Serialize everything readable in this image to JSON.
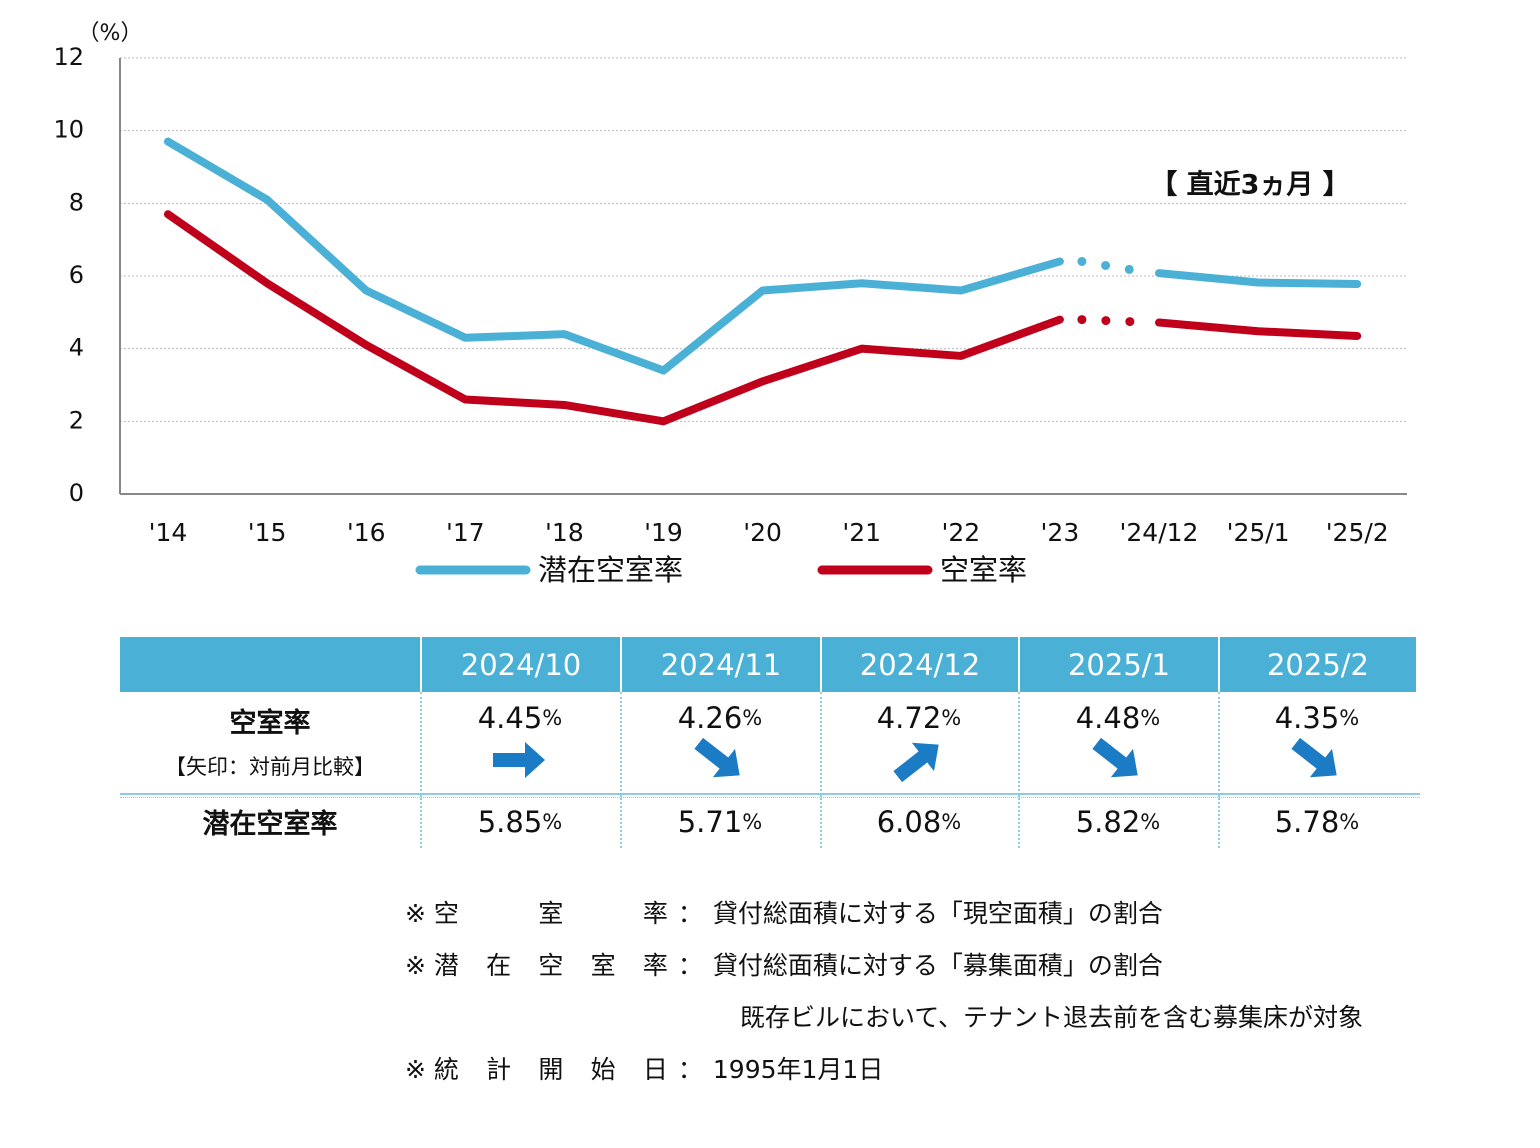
{
  "chart_data": {
    "type": "line",
    "y_unit_label": "（%）",
    "annotation": "【 直近3ヵ月 】",
    "categories": [
      "'14",
      "'15",
      "'16",
      "'17",
      "'18",
      "'19",
      "'20",
      "'21",
      "'22",
      "'23",
      "'24/12",
      "'25/1",
      "'25/2"
    ],
    "series": [
      {
        "name": "潜在空室率",
        "color": "#4bb0d6",
        "values": [
          9.7,
          8.1,
          5.6,
          4.3,
          4.4,
          3.4,
          5.6,
          5.8,
          5.6,
          6.4,
          6.08,
          5.82,
          5.78
        ]
      },
      {
        "name": "空室率",
        "color": "#c0001b",
        "values": [
          7.7,
          5.8,
          4.1,
          2.6,
          2.45,
          2.0,
          3.1,
          4.0,
          3.8,
          4.8,
          4.72,
          4.48,
          4.35
        ]
      }
    ],
    "dotted_segment": [
      9,
      10
    ],
    "ylim": [
      0,
      12
    ],
    "yticks": [
      0,
      2,
      4,
      6,
      8,
      10,
      12
    ],
    "grid": true
  },
  "table": {
    "columns": [
      "2024/10",
      "2024/11",
      "2024/12",
      "2025/1",
      "2025/2"
    ],
    "unit": "%",
    "rows": [
      {
        "label": "空室率",
        "sublabel": "【矢印：対前月比較】",
        "values": [
          4.45,
          4.26,
          4.72,
          4.48,
          4.35
        ],
        "arrows": [
          "flat",
          "down",
          "up",
          "down",
          "down"
        ]
      },
      {
        "label": "潜在空室率",
        "values": [
          5.85,
          5.71,
          6.08,
          5.82,
          5.78
        ]
      }
    ]
  },
  "notes": {
    "mark": "※",
    "colon": "：",
    "rows": [
      {
        "label": "空室率",
        "lines": [
          "貸付総面積に対する「現空面積」の割合"
        ]
      },
      {
        "label": "潜在空室率",
        "lines": [
          "貸付総面積に対する「募集面積」の割合",
          "既存ビルにおいて、テナント退去前を含む募集床が対象"
        ]
      },
      {
        "label": "統計開始日",
        "lines": [
          "1995年1月1日"
        ]
      }
    ]
  }
}
